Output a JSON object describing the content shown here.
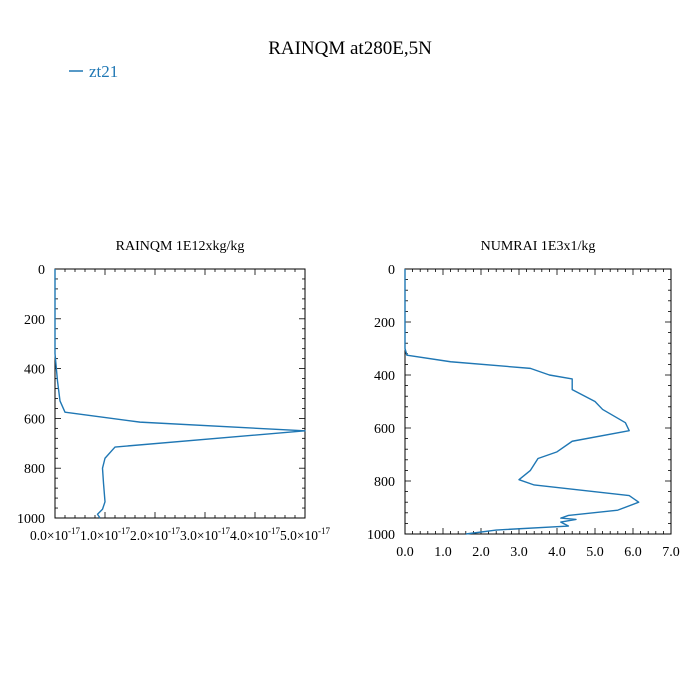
{
  "figure": {
    "title": "RAINQM at280E,5N",
    "legend": {
      "label": "zt21",
      "placement": "top-left",
      "color": "#1f77b4"
    }
  },
  "chart_data": [
    {
      "type": "line",
      "title": "RAINQM  1E12xkg/kg",
      "xlim": [
        0,
        5e-17
      ],
      "ylim": [
        1000,
        0
      ],
      "y_inverted": true,
      "xticks": [
        0,
        1e-17,
        2e-17,
        3e-17,
        4e-17,
        5e-17
      ],
      "xtick_labels": [
        "0.0×10",
        "1.0×10",
        "2.0×10",
        "3.0×10",
        "4.0×10",
        "5.0×10"
      ],
      "xtick_exponent": "-17",
      "yticks": [
        0,
        200,
        400,
        600,
        800,
        1000
      ],
      "ytick_labels": [
        "0",
        "200",
        "400",
        "600",
        "800",
        "1000"
      ],
      "series": [
        {
          "name": "zt21",
          "color": "#1f77b4",
          "x": [
            0,
            0,
            5e-19,
            1e-18,
            2e-18,
            1.7e-17,
            5e-17,
            1.2e-17,
            1e-17,
            9.5e-18,
            9.7e-18,
            1e-17,
            9.5e-18,
            8.5e-18,
            9e-18
          ],
          "y": [
            0,
            340,
            450,
            530,
            575,
            615,
            650,
            715,
            760,
            800,
            860,
            935,
            965,
            985,
            1000
          ]
        }
      ]
    },
    {
      "type": "line",
      "title": "NUMRAI  1E3x1/kg",
      "xlim": [
        0,
        7
      ],
      "ylim": [
        1000,
        0
      ],
      "y_inverted": true,
      "xticks": [
        0,
        1,
        2,
        3,
        4,
        5,
        6,
        7
      ],
      "xtick_labels": [
        "0.0",
        "1.0",
        "2.0",
        "3.0",
        "4.0",
        "5.0",
        "6.0",
        "7.0"
      ],
      "yticks": [
        0,
        200,
        400,
        600,
        800,
        1000
      ],
      "ytick_labels": [
        "0",
        "200",
        "400",
        "600",
        "800",
        "1000"
      ],
      "series": [
        {
          "name": "zt21",
          "color": "#1f77b4",
          "x": [
            0,
            0,
            0.05,
            1.2,
            3.3,
            3.8,
            4.4,
            4.4,
            5.0,
            5.2,
            5.8,
            5.9,
            4.4,
            4.0,
            3.5,
            3.3,
            3.0,
            3.4,
            5.9,
            6.15,
            5.6,
            4.3,
            4.1,
            4.5,
            4.1,
            4.3,
            2.4,
            1.6
          ],
          "y": [
            0,
            300,
            325,
            350,
            375,
            400,
            415,
            455,
            500,
            530,
            580,
            610,
            650,
            690,
            715,
            760,
            795,
            815,
            855,
            880,
            910,
            930,
            940,
            945,
            955,
            970,
            985,
            1000
          ]
        }
      ]
    }
  ]
}
